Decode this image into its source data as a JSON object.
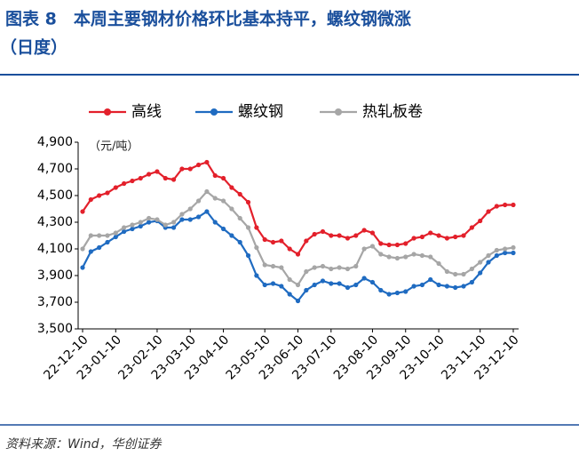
{
  "chart_data": {
    "type": "line",
    "title_lines": [
      "图表 8　本周主要钢材价格环比基本持平，螺纹钢微涨",
      "（日度）"
    ],
    "unit_label": "（元/吨）",
    "source": "资料来源：Wind，华创证券",
    "categories": [
      "22-12-10",
      null,
      null,
      null,
      "23-01-10",
      null,
      null,
      null,
      null,
      "23-02-10",
      null,
      null,
      null,
      "23-03-10",
      null,
      null,
      null,
      "23-04-10",
      null,
      null,
      null,
      null,
      "23-05-10",
      null,
      null,
      null,
      "23-06-10",
      null,
      null,
      null,
      "23-07-10",
      null,
      null,
      null,
      null,
      "23-08-10",
      null,
      null,
      null,
      "23-09-10",
      null,
      null,
      null,
      "23-10-10",
      null,
      null,
      null,
      null,
      "23-11-10",
      null,
      null,
      null,
      "23-12-10"
    ],
    "series": [
      {
        "name": "高线",
        "color": "#e3202b",
        "values": [
          4380,
          4470,
          4500,
          4520,
          4560,
          4590,
          4610,
          4630,
          4660,
          4680,
          4630,
          4620,
          4700,
          4700,
          4730,
          4750,
          4650,
          4630,
          4560,
          4510,
          4450,
          4260,
          4170,
          4150,
          4160,
          4100,
          4060,
          4160,
          4210,
          4230,
          4200,
          4200,
          4180,
          4200,
          4240,
          4220,
          4140,
          4130,
          4130,
          4140,
          4180,
          4190,
          4220,
          4200,
          4180,
          4190,
          4200,
          4260,
          4310,
          4380,
          4420,
          4430,
          4430
        ]
      },
      {
        "name": "螺纹钢",
        "color": "#1f6bc1",
        "values": [
          3960,
          4080,
          4110,
          4150,
          4190,
          4230,
          4250,
          4270,
          4300,
          4310,
          4260,
          4260,
          4320,
          4320,
          4340,
          4380,
          4300,
          4250,
          4200,
          4150,
          4050,
          3900,
          3830,
          3840,
          3820,
          3760,
          3710,
          3790,
          3830,
          3860,
          3840,
          3840,
          3810,
          3830,
          3880,
          3850,
          3790,
          3760,
          3770,
          3780,
          3820,
          3830,
          3870,
          3830,
          3820,
          3810,
          3820,
          3850,
          3920,
          4000,
          4050,
          4070,
          4070
        ]
      },
      {
        "name": "热轧板卷",
        "color": "#a6a6a6",
        "values": [
          4100,
          4200,
          4200,
          4200,
          4220,
          4260,
          4280,
          4300,
          4330,
          4320,
          4280,
          4300,
          4360,
          4400,
          4460,
          4530,
          4480,
          4460,
          4400,
          4330,
          4260,
          4110,
          3980,
          3970,
          3960,
          3870,
          3830,
          3930,
          3960,
          3970,
          3950,
          3960,
          3950,
          3970,
          4100,
          4120,
          4060,
          4040,
          4030,
          4040,
          4060,
          4050,
          4040,
          3990,
          3930,
          3910,
          3910,
          3950,
          4000,
          4050,
          4090,
          4100,
          4110
        ]
      }
    ],
    "ylim": [
      3500,
      4900
    ],
    "yticks": [
      {
        "value": 3500,
        "label": "3,500"
      },
      {
        "value": 3700,
        "label": "3,700"
      },
      {
        "value": 3900,
        "label": "3,900"
      },
      {
        "value": 4100,
        "label": "4,100"
      },
      {
        "value": 4300,
        "label": "4,300"
      },
      {
        "value": 4500,
        "label": "4,500"
      },
      {
        "value": 4700,
        "label": "4,700"
      },
      {
        "value": 4900,
        "label": "4,900"
      }
    ]
  }
}
